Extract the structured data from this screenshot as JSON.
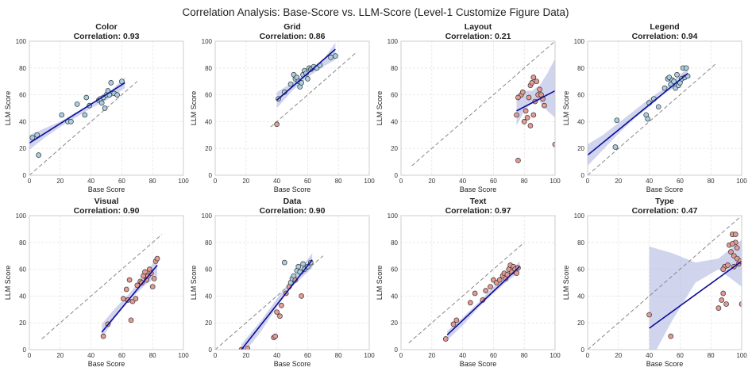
{
  "figure": {
    "title": "Correlation Analysis: Base-Score vs. LLM-Score (Level-1 Customize Figure Data)"
  },
  "colors": {
    "above_point": "#a8cfe0",
    "below_point": "#e49a93",
    "point_edge": "#333333",
    "regression_line": "#0b0b99",
    "confidence_band": "#aab0de",
    "identity_line": "#888888",
    "grid": "#e6e6e6",
    "axis_frame": "#cccccc"
  },
  "chart_data": [
    {
      "type": "scatter",
      "title": "Color",
      "subtitle": "Correlation: 0.93",
      "xlabel": "Base Score",
      "ylabel": "LLM Score",
      "xlim": [
        0,
        100
      ],
      "ylim": [
        0,
        100
      ],
      "xticks": [
        "0",
        "20",
        "40",
        "60",
        "80",
        "100"
      ],
      "yticks": [
        "0",
        "20",
        "40",
        "60",
        "80",
        "100"
      ],
      "grid": true,
      "identity_range": [
        0,
        70
      ],
      "regression": {
        "x": [
          0,
          62
        ],
        "y": [
          24,
          69
        ]
      },
      "band": {
        "x": [
          0,
          10,
          20,
          30,
          40,
          50,
          62
        ],
        "lo": [
          19,
          28,
          36,
          43,
          50,
          56,
          65
        ],
        "hi": [
          30,
          35,
          40,
          47,
          53,
          60,
          73
        ]
      },
      "points": {
        "x": [
          5,
          6,
          21,
          25,
          27,
          31,
          36,
          37,
          39,
          45,
          46,
          47,
          48,
          49,
          50,
          51,
          52,
          53,
          55,
          57,
          60,
          2
        ],
        "y": [
          30,
          15,
          45,
          40,
          40,
          53,
          45,
          58,
          52,
          56,
          57,
          54,
          58,
          50,
          60,
          63,
          60,
          69,
          61,
          60,
          70,
          28
        ],
        "group": [
          "above",
          "above",
          "above",
          "above",
          "above",
          "above",
          "above",
          "above",
          "above",
          "above",
          "above",
          "above",
          "above",
          "above",
          "above",
          "above",
          "above",
          "above",
          "above",
          "above",
          "above",
          "above"
        ]
      }
    },
    {
      "type": "scatter",
      "title": "Grid",
      "subtitle": "Correlation: 0.86",
      "xlabel": "Base Score",
      "ylabel": "LLM Score",
      "xlim": [
        0,
        100
      ],
      "ylim": [
        0,
        100
      ],
      "xticks": [
        "0",
        "20",
        "40",
        "60",
        "80",
        "100"
      ],
      "yticks": [
        "0",
        "20",
        "40",
        "60",
        "80",
        "100"
      ],
      "grid": true,
      "identity_range": [
        36,
        92
      ],
      "regression": {
        "x": [
          40,
          78
        ],
        "y": [
          56,
          94
        ]
      },
      "band": {
        "x": [
          40,
          50,
          60,
          70,
          78
        ],
        "lo": [
          50,
          63,
          73,
          81,
          86
        ],
        "hi": [
          62,
          69,
          77,
          86,
          99
        ]
      },
      "points": {
        "x": [
          40,
          41,
          45,
          49,
          51,
          52,
          53,
          54,
          55,
          56,
          57,
          58,
          59,
          60,
          61,
          62,
          63,
          64,
          66,
          68,
          75,
          78
        ],
        "y": [
          38,
          57,
          62,
          68,
          75,
          72,
          73,
          70,
          66,
          69,
          75,
          78,
          76,
          72,
          80,
          79,
          80,
          81,
          80,
          82,
          88,
          89
        ],
        "group": [
          "below",
          "above",
          "above",
          "above",
          "above",
          "above",
          "above",
          "above",
          "above",
          "above",
          "above",
          "above",
          "above",
          "above",
          "above",
          "above",
          "above",
          "above",
          "above",
          "above",
          "above",
          "above"
        ]
      }
    },
    {
      "type": "scatter",
      "title": "Layout",
      "subtitle": "Correlation: 0.21",
      "xlabel": "Base Score",
      "ylabel": "LLM Score",
      "xlim": [
        0,
        100
      ],
      "ylim": [
        0,
        100
      ],
      "xticks": [
        "0",
        "20",
        "40",
        "60",
        "80",
        "100"
      ],
      "yticks": [
        "0",
        "20",
        "40",
        "60",
        "80",
        "100"
      ],
      "grid": true,
      "identity_range": [
        7,
        100
      ],
      "regression": {
        "x": [
          75,
          100
        ],
        "y": [
          48,
          63
        ]
      },
      "band": {
        "x": [
          75,
          80,
          85,
          90,
          95,
          100
        ],
        "lo": [
          37,
          48,
          54,
          55,
          48,
          43
        ],
        "hi": [
          60,
          63,
          63,
          67,
          76,
          87
        ]
      },
      "points": {
        "x": [
          75,
          76,
          78,
          79,
          80,
          81,
          82,
          83,
          84,
          85,
          86,
          87,
          88,
          89,
          90,
          91,
          92,
          93,
          84,
          86,
          100,
          76
        ],
        "y": [
          45,
          11,
          60,
          62,
          40,
          48,
          43,
          58,
          67,
          69,
          73,
          55,
          70,
          60,
          64,
          60,
          57,
          52,
          37,
          45,
          23,
          58
        ],
        "group": [
          "below",
          "below",
          "below",
          "below",
          "below",
          "below",
          "below",
          "below",
          "below",
          "below",
          "below",
          "below",
          "below",
          "below",
          "below",
          "below",
          "below",
          "below",
          "below",
          "below",
          "below",
          "below"
        ]
      }
    },
    {
      "type": "scatter",
      "title": "Legend",
      "subtitle": "Correlation: 0.94",
      "xlabel": "Base Score",
      "ylabel": "LLM Score",
      "xlim": [
        0,
        100
      ],
      "ylim": [
        0,
        100
      ],
      "xticks": [
        "0",
        "20",
        "40",
        "60",
        "80",
        "100"
      ],
      "yticks": [
        "0",
        "20",
        "40",
        "60",
        "80",
        "100"
      ],
      "grid": true,
      "identity_range": [
        0,
        83
      ],
      "regression": {
        "x": [
          0,
          65
        ],
        "y": [
          15,
          76
        ]
      },
      "band": {
        "x": [
          0,
          10,
          20,
          30,
          40,
          50,
          65
        ],
        "lo": [
          7,
          19,
          31,
          42,
          51,
          61,
          72
        ],
        "hi": [
          23,
          30,
          39,
          48,
          57,
          65,
          80
        ]
      },
      "points": {
        "x": [
          18,
          19,
          38,
          39,
          40,
          43,
          46,
          50,
          52,
          53,
          54,
          55,
          56,
          57,
          58,
          59,
          60,
          61,
          62,
          63,
          64,
          65
        ],
        "y": [
          21,
          41,
          45,
          42,
          54,
          57,
          51,
          65,
          72,
          73,
          68,
          71,
          70,
          65,
          75,
          67,
          69,
          72,
          80,
          73,
          80,
          74
        ],
        "group": [
          "above",
          "above",
          "above",
          "above",
          "above",
          "above",
          "above",
          "above",
          "above",
          "above",
          "above",
          "above",
          "above",
          "above",
          "above",
          "above",
          "above",
          "above",
          "above",
          "above",
          "above",
          "above"
        ]
      }
    },
    {
      "type": "scatter",
      "title": "Visual",
      "subtitle": "Correlation: 0.90",
      "xlabel": "Base Score",
      "ylabel": "LLM Score",
      "xlim": [
        0,
        100
      ],
      "ylim": [
        0,
        100
      ],
      "xticks": [
        "0",
        "20",
        "40",
        "60",
        "80",
        "100"
      ],
      "yticks": [
        "0",
        "20",
        "40",
        "60",
        "80",
        "100"
      ],
      "grid": true,
      "identity_range": [
        8,
        86
      ],
      "regression": {
        "x": [
          47,
          83
        ],
        "y": [
          13,
          63
        ]
      },
      "band": {
        "x": [
          47,
          55,
          65,
          75,
          83
        ],
        "lo": [
          8,
          23,
          37,
          48,
          55
        ],
        "hi": [
          19,
          30,
          42,
          56,
          69
        ]
      },
      "points": {
        "x": [
          48,
          51,
          61,
          63,
          64,
          66,
          67,
          69,
          70,
          72,
          73,
          74,
          75,
          76,
          77,
          78,
          79,
          80,
          81,
          82,
          83,
          65
        ],
        "y": [
          10,
          19,
          38,
          45,
          37,
          22,
          36,
          38,
          48,
          51,
          50,
          55,
          58,
          52,
          55,
          60,
          57,
          47,
          53,
          66,
          68,
          52
        ],
        "group": [
          "below",
          "below",
          "below",
          "below",
          "below",
          "below",
          "below",
          "below",
          "below",
          "below",
          "below",
          "below",
          "below",
          "below",
          "below",
          "below",
          "below",
          "below",
          "below",
          "below",
          "below",
          "below"
        ]
      }
    },
    {
      "type": "scatter",
      "title": "Data",
      "subtitle": "Correlation: 0.90",
      "xlabel": "Base Score",
      "ylabel": "LLM Score",
      "xlim": [
        0,
        100
      ],
      "ylim": [
        0,
        100
      ],
      "xticks": [
        "0",
        "20",
        "40",
        "60",
        "80",
        "100"
      ],
      "yticks": [
        "0",
        "20",
        "40",
        "60",
        "80",
        "100"
      ],
      "grid": true,
      "identity_range": [
        0,
        70
      ],
      "regression": {
        "x": [
          17,
          63
        ],
        "y": [
          0,
          67
        ]
      },
      "band": {
        "x": [
          17,
          30,
          40,
          50,
          63
        ],
        "lo": [
          -5,
          14,
          32,
          47,
          61
        ],
        "hi": [
          4,
          22,
          38,
          53,
          72
        ]
      },
      "points": {
        "x": [
          17,
          21,
          38,
          39,
          40,
          42,
          43,
          45,
          46,
          48,
          49,
          50,
          51,
          52,
          53,
          54,
          55,
          56,
          57,
          58,
          60,
          62
        ],
        "y": [
          0,
          1,
          9,
          10,
          28,
          25,
          33,
          65,
          42,
          47,
          50,
          53,
          55,
          52,
          59,
          62,
          58,
          40,
          64,
          60,
          62,
          65
        ],
        "group": [
          "below",
          "below",
          "below",
          "below",
          "below",
          "below",
          "below",
          "above",
          "below",
          "below",
          "above",
          "above",
          "above",
          "below",
          "above",
          "above",
          "above",
          "below",
          "above",
          "above",
          "above",
          "above"
        ]
      }
    },
    {
      "type": "scatter",
      "title": "Text",
      "subtitle": "Correlation: 0.97",
      "xlabel": "Base Score",
      "ylabel": "LLM Score",
      "xlim": [
        0,
        100
      ],
      "ylim": [
        0,
        100
      ],
      "xticks": [
        "0",
        "20",
        "40",
        "60",
        "80",
        "100"
      ],
      "yticks": [
        "0",
        "20",
        "40",
        "60",
        "80",
        "100"
      ],
      "grid": true,
      "identity_range": [
        5,
        80
      ],
      "regression": {
        "x": [
          30,
          77
        ],
        "y": [
          11,
          62
        ]
      },
      "band": {
        "x": [
          30,
          40,
          50,
          60,
          70,
          77
        ],
        "lo": [
          7,
          18,
          31,
          42,
          52,
          58
        ],
        "hi": [
          14,
          24,
          35,
          47,
          57,
          66
        ]
      },
      "points": {
        "x": [
          29,
          34,
          36,
          45,
          48,
          53,
          55,
          58,
          60,
          62,
          64,
          66,
          67,
          68,
          69,
          70,
          71,
          72,
          73,
          74,
          75,
          76
        ],
        "y": [
          8,
          19,
          22,
          35,
          42,
          37,
          44,
          47,
          52,
          50,
          52,
          55,
          57,
          53,
          56,
          60,
          63,
          58,
          62,
          60,
          57,
          61
        ],
        "group": [
          "below",
          "below",
          "below",
          "below",
          "below",
          "below",
          "below",
          "below",
          "below",
          "below",
          "below",
          "below",
          "below",
          "below",
          "below",
          "below",
          "below",
          "below",
          "below",
          "below",
          "below",
          "below"
        ]
      }
    },
    {
      "type": "scatter",
      "title": "Type",
      "subtitle": "Correlation: 0.47",
      "xlabel": "Base Score",
      "ylabel": "LLM Score",
      "xlim": [
        0,
        100
      ],
      "ylim": [
        0,
        100
      ],
      "xticks": [
        "0",
        "20",
        "40",
        "60",
        "80",
        "100"
      ],
      "yticks": [
        "0",
        "20",
        "40",
        "60",
        "80",
        "100"
      ],
      "grid": true,
      "identity_range": [
        0,
        100
      ],
      "regression": {
        "x": [
          40,
          100
        ],
        "y": [
          16,
          66
        ]
      },
      "band": {
        "x": [
          40,
          55,
          70,
          85,
          100
        ],
        "lo": [
          -10,
          22,
          50,
          60,
          47
        ],
        "hi": [
          77,
          72,
          65,
          68,
          82
        ]
      },
      "points": {
        "x": [
          40,
          54,
          85,
          87,
          88,
          89,
          90,
          91,
          92,
          93,
          94,
          95,
          96,
          97,
          98,
          96,
          99,
          100,
          88,
          94,
          95,
          97
        ],
        "y": [
          26,
          10,
          31,
          37,
          42,
          62,
          34,
          63,
          78,
          73,
          86,
          70,
          80,
          68,
          64,
          86,
          66,
          34,
          60,
          79,
          62,
          76
        ],
        "group": [
          "below",
          "below",
          "below",
          "below",
          "below",
          "below",
          "below",
          "below",
          "below",
          "below",
          "below",
          "below",
          "below",
          "below",
          "below",
          "below",
          "below",
          "below",
          "below",
          "below",
          "below",
          "below"
        ]
      }
    }
  ]
}
